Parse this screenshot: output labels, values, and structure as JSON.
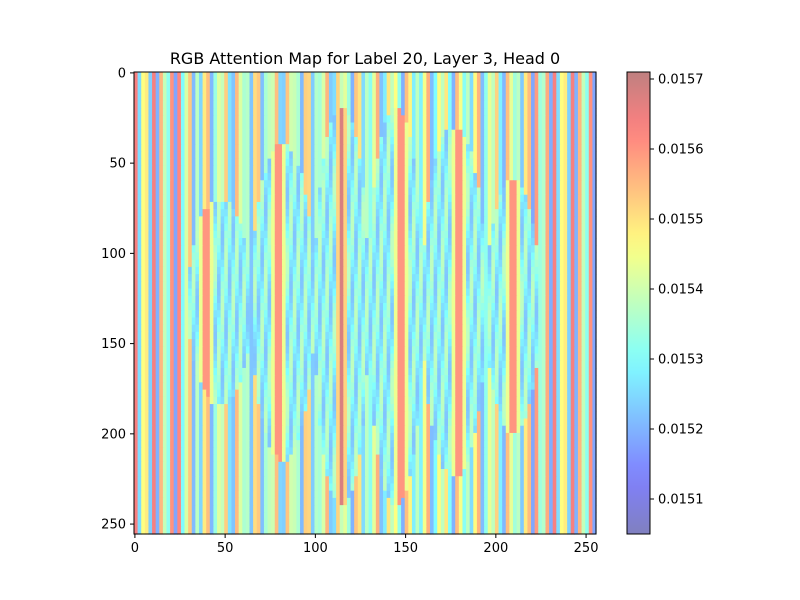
{
  "chart_data": {
    "type": "heatmap",
    "title": "RGB Attention Map for Label 20, Layer 3, Head 0",
    "xlabel": "",
    "ylabel": "",
    "xlim": [
      0,
      255
    ],
    "ylim": [
      255,
      0
    ],
    "x_ticks": [
      0,
      50,
      100,
      150,
      200,
      250
    ],
    "y_ticks": [
      0,
      50,
      100,
      150,
      200,
      250
    ],
    "colorbar": {
      "min": 0.01505,
      "max": 0.01571,
      "ticks": [
        "0.0151",
        "0.0152",
        "0.0153",
        "0.0154",
        "0.0155",
        "0.0156",
        "0.0157"
      ],
      "tick_values": [
        0.0151,
        0.0152,
        0.0153,
        0.0154,
        0.0155,
        0.0156,
        0.0157
      ],
      "colormap": "jet",
      "alpha": 0.5
    },
    "grid": false,
    "pattern": {
      "description": "vertical stripe pattern with four bright (red) column bands and elliptical lower-value halo regions",
      "band_centers_x": [
        40,
        80,
        115,
        148,
        180,
        210
      ],
      "halo_regions": [
        {
          "x": [
            30,
            65
          ],
          "y": [
            70,
            185
          ]
        },
        {
          "x": [
            65,
            100
          ],
          "y": [
            40,
            215
          ]
        },
        {
          "x": [
            100,
            130
          ],
          "y": [
            20,
            240
          ]
        },
        {
          "x": [
            130,
            160
          ],
          "y": [
            20,
            240
          ]
        },
        {
          "x": [
            160,
            195
          ],
          "y": [
            30,
            225
          ]
        },
        {
          "x": [
            195,
            225
          ],
          "y": [
            60,
            200
          ]
        }
      ]
    }
  }
}
